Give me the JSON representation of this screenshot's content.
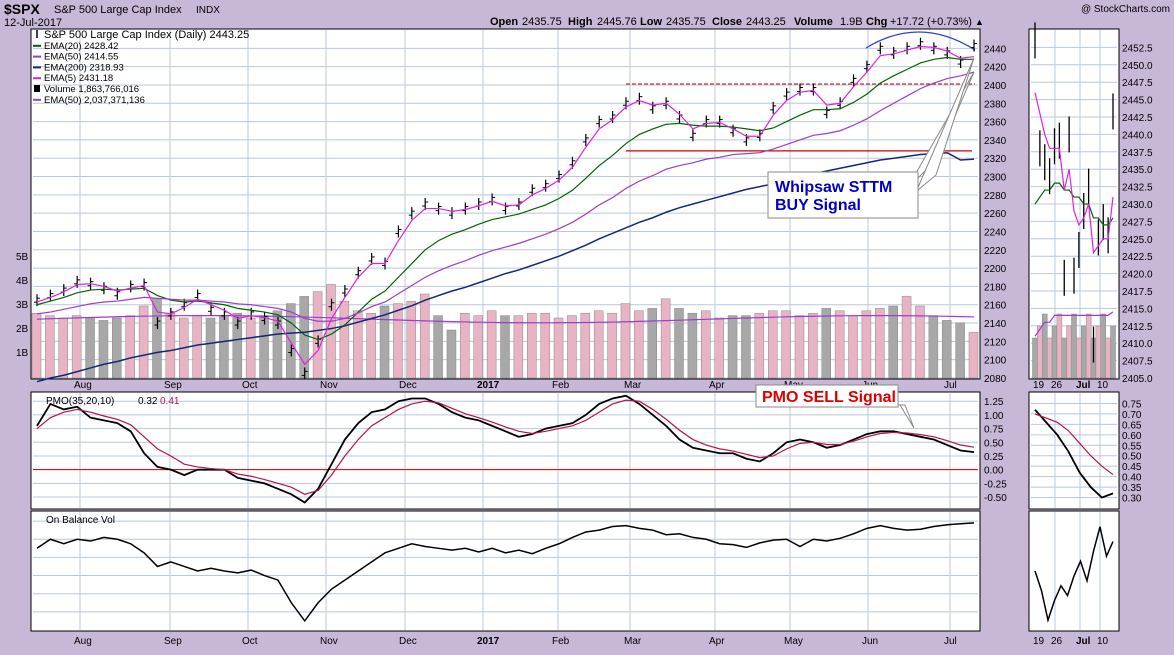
{
  "header": {
    "symbol": "$SPX",
    "name": "S&P 500 Large Cap Index",
    "exchange": "INDX",
    "date": "12-Jul-2017",
    "watermark": "@ StockCharts.com",
    "quote": {
      "open_label": "Open",
      "open": "2435.75",
      "high_label": "High",
      "high": "2445.76",
      "low_label": "Low",
      "low": "2435.75",
      "close_label": "Close",
      "close": "2443.25",
      "volume_label": "Volume",
      "volume": "1.9B",
      "chg_label": "Chg",
      "chg": "+17.72 (+0.73%)"
    }
  },
  "colors": {
    "background": "#c8b8d8",
    "plot_bg": "#ffffff",
    "grid": "#b8c8dc",
    "price": "#000000",
    "ema20": "#006400",
    "ema50": "#9c3cd0",
    "ema200": "#102a7a",
    "ema5": "#e020e0",
    "volume_up": "#e8b4c4",
    "volume_down": "#a8a8a8",
    "resistance": "#cc0000",
    "pmo": "#000000",
    "pmo_signal": "#b4144a",
    "annotation_blue": "#0000cc",
    "annotation_red": "#dd0000",
    "arc": "#3040d0"
  },
  "legend": [
    {
      "label": "S&P 500 Large Cap Index (Daily) 2443.25",
      "color": "#000000",
      "marker": "bar"
    },
    {
      "label": "EMA(20) 2428.42",
      "color": "#006400",
      "marker": "line"
    },
    {
      "label": "EMA(50) 2414.55",
      "color": "#9c3cd0",
      "marker": "line"
    },
    {
      "label": "EMA(200) 2318.93",
      "color": "#102a7a",
      "marker": "line"
    },
    {
      "label": "EMA(5) 2431.18",
      "color": "#e020e0",
      "marker": "line"
    },
    {
      "label": "Volume 1,863,766,016",
      "color": "#000000",
      "marker": "square"
    },
    {
      "label": "EMA(50) 2,037,371,136",
      "color": "#9c3cd0",
      "marker": "line"
    }
  ],
  "annotations": {
    "whipsaw_line1": "Whipsaw STTM",
    "whipsaw_line2": "BUY Signal",
    "pmo_sell": "PMO SELL Signal"
  },
  "pmo_panel": {
    "label": "PMO(35,20,10)",
    "value1": "0.32",
    "value2": "0.41"
  },
  "obv_panel": {
    "label": "On Balance Vol"
  },
  "chart_data": [
    {
      "type": "line",
      "panel": "price",
      "title": "S&P 500 Large Cap Index (Daily) 2443.25",
      "x": [
        "Jul-26",
        "Aug-01",
        "Aug-05",
        "Aug-10",
        "Aug-15",
        "Aug-20",
        "Aug-25",
        "Sep-01",
        "Sep-06",
        "Sep-09",
        "Sep-13",
        "Sep-20",
        "Sep-25",
        "Oct-01",
        "Oct-06",
        "Oct-11",
        "Oct-15",
        "Oct-20",
        "Oct-25",
        "Nov-01",
        "Nov-04",
        "Nov-08",
        "Nov-10",
        "Nov-14",
        "Nov-20",
        "Nov-25",
        "Dec-01",
        "Dec-05",
        "Dec-08",
        "Dec-13",
        "Dec-20",
        "Dec-27",
        "Jan-01",
        "Jan-05",
        "Jan-10",
        "Jan-15",
        "Jan-20",
        "Jan-25",
        "Feb-01",
        "Feb-05",
        "Feb-10",
        "Feb-15",
        "Feb-20",
        "Feb-25",
        "Mar-01",
        "Mar-05",
        "Mar-10",
        "Mar-15",
        "Mar-20",
        "Mar-25",
        "Apr-01",
        "Apr-05",
        "Apr-10",
        "Apr-15",
        "Apr-20",
        "Apr-25",
        "May-01",
        "May-05",
        "May-10",
        "May-15",
        "May-20",
        "May-25",
        "Jun-01",
        "Jun-05",
        "Jun-10",
        "Jun-15",
        "Jun-20",
        "Jun-25",
        "Jul-01",
        "Jul-05",
        "Jul-12"
      ],
      "series": [
        {
          "name": "S&P 500 Large Cap Index (Daily)",
          "values": [
            2165,
            2170,
            2176,
            2185,
            2183,
            2178,
            2172,
            2180,
            2182,
            2140,
            2150,
            2160,
            2170,
            2155,
            2150,
            2140,
            2150,
            2145,
            2140,
            2110,
            2085,
            2120,
            2160,
            2175,
            2195,
            2210,
            2205,
            2240,
            2260,
            2270,
            2265,
            2260,
            2265,
            2270,
            2275,
            2265,
            2270,
            2285,
            2290,
            2300,
            2315,
            2340,
            2360,
            2365,
            2380,
            2385,
            2375,
            2380,
            2365,
            2345,
            2360,
            2360,
            2350,
            2340,
            2345,
            2375,
            2390,
            2395,
            2395,
            2370,
            2380,
            2405,
            2420,
            2440,
            2435,
            2440,
            2445,
            2440,
            2435,
            2425,
            2443
          ]
        },
        {
          "name": "EMA(20)",
          "values": [
            2160,
            2164,
            2168,
            2173,
            2176,
            2177,
            2176,
            2177,
            2178,
            2170,
            2165,
            2163,
            2164,
            2162,
            2160,
            2156,
            2154,
            2152,
            2149,
            2140,
            2127,
            2122,
            2128,
            2138,
            2152,
            2166,
            2175,
            2190,
            2205,
            2220,
            2230,
            2237,
            2242,
            2248,
            2253,
            2256,
            2259,
            2264,
            2269,
            2276,
            2285,
            2298,
            2312,
            2323,
            2336,
            2346,
            2352,
            2357,
            2358,
            2356,
            2355,
            2355,
            2354,
            2352,
            2350,
            2353,
            2360,
            2367,
            2373,
            2373,
            2374,
            2381,
            2390,
            2402,
            2410,
            2417,
            2424,
            2428,
            2430,
            2428,
            2428
          ]
        },
        {
          "name": "EMA(50)",
          "values": [
            2150,
            2152,
            2155,
            2158,
            2161,
            2163,
            2164,
            2166,
            2168,
            2167,
            2166,
            2165,
            2165,
            2164,
            2163,
            2161,
            2160,
            2158,
            2156,
            2152,
            2145,
            2142,
            2142,
            2145,
            2151,
            2158,
            2163,
            2172,
            2181,
            2190,
            2197,
            2203,
            2208,
            2214,
            2219,
            2223,
            2227,
            2232,
            2237,
            2243,
            2250,
            2259,
            2269,
            2277,
            2287,
            2295,
            2301,
            2308,
            2312,
            2315,
            2319,
            2321,
            2324,
            2325,
            2326,
            2330,
            2335,
            2340,
            2345,
            2347,
            2350,
            2356,
            2363,
            2372,
            2380,
            2388,
            2396,
            2402,
            2407,
            2410,
            2414
          ]
        },
        {
          "name": "EMA(200)",
          "values": [
            2076,
            2080,
            2083,
            2087,
            2091,
            2095,
            2098,
            2102,
            2105,
            2108,
            2110,
            2113,
            2116,
            2118,
            2120,
            2122,
            2124,
            2126,
            2128,
            2129,
            2130,
            2132,
            2134,
            2137,
            2141,
            2145,
            2149,
            2154,
            2159,
            2165,
            2170,
            2175,
            2179,
            2184,
            2189,
            2194,
            2198,
            2203,
            2208,
            2213,
            2219,
            2225,
            2232,
            2238,
            2244,
            2250,
            2255,
            2261,
            2266,
            2270,
            2274,
            2278,
            2282,
            2286,
            2289,
            2292,
            2296,
            2300,
            2303,
            2306,
            2309,
            2312,
            2315,
            2318,
            2320,
            2322,
            2324,
            2325,
            2326,
            2318,
            2319
          ]
        },
        {
          "name": "EMA(5)",
          "values": [
            2163,
            2168,
            2174,
            2182,
            2183,
            2180,
            2175,
            2178,
            2181,
            2152,
            2150,
            2157,
            2166,
            2160,
            2154,
            2145,
            2148,
            2146,
            2142,
            2118,
            2095,
            2110,
            2145,
            2168,
            2190,
            2205,
            2205,
            2230,
            2252,
            2265,
            2265,
            2262,
            2264,
            2268,
            2273,
            2268,
            2269,
            2280,
            2287,
            2296,
            2310,
            2332,
            2352,
            2362,
            2376,
            2383,
            2378,
            2380,
            2368,
            2352,
            2358,
            2359,
            2352,
            2344,
            2344,
            2367,
            2383,
            2392,
            2394,
            2378,
            2380,
            2398,
            2414,
            2432,
            2434,
            2438,
            2442,
            2441,
            2437,
            2429,
            2431
          ]
        }
      ],
      "volume": [
        2.7,
        2.6,
        2.5,
        2.6,
        2.5,
        2.4,
        2.5,
        2.6,
        3.0,
        3.3,
        2.7,
        2.5,
        2.6,
        2.5,
        2.6,
        2.7,
        2.5,
        2.6,
        2.8,
        3.1,
        3.4,
        3.6,
        3.9,
        3.2,
        2.8,
        2.7,
        3.0,
        3.1,
        3.2,
        3.5,
        2.6,
        2.0,
        2.7,
        2.6,
        2.8,
        2.6,
        2.6,
        2.7,
        2.7,
        2.5,
        2.6,
        2.7,
        2.8,
        2.7,
        3.1,
        2.8,
        2.9,
        3.3,
        2.9,
        2.7,
        2.8,
        2.5,
        2.6,
        2.6,
        2.7,
        2.8,
        2.8,
        2.6,
        2.7,
        2.9,
        2.8,
        2.6,
        2.8,
        2.9,
        3.0,
        3.4,
        3.0,
        2.6,
        2.4,
        2.3,
        1.9
      ],
      "annotations": [
        "resistance 2401",
        "support 2328"
      ],
      "ylim": [
        2080,
        2460
      ],
      "y_ticks": [
        2080,
        2100,
        2120,
        2140,
        2160,
        2180,
        2200,
        2220,
        2240,
        2260,
        2280,
        2300,
        2320,
        2340,
        2360,
        2380,
        2400,
        2420,
        2440
      ],
      "volume_ticks": [
        "1B",
        "2B",
        "3B",
        "4B",
        "5B"
      ],
      "x_labels": [
        "Aug",
        "Sep",
        "Oct",
        "Nov",
        "Dec",
        "2017",
        "Feb",
        "Mar",
        "Apr",
        "May",
        "Jun",
        "Jul"
      ],
      "grid": true,
      "legend": "top-left"
    },
    {
      "type": "line",
      "panel": "price-zoom",
      "x": [
        "Jun-19",
        "Jun-20",
        "Jun-21",
        "Jun-22",
        "Jun-23",
        "Jun-26",
        "Jun-27",
        "Jun-28",
        "Jun-29",
        "Jun-30",
        "Jul-03",
        "Jul-05",
        "Jul-06",
        "Jul-07",
        "Jul-10",
        "Jul-11",
        "Jul-12"
      ],
      "series": [
        {
          "name": "Close",
          "values": [
            2453.5,
            2438.0,
            2436.0,
            2434.0,
            2438.3,
            2439.1,
            2419.4,
            2440.0,
            2419.7,
            2423.4,
            2429.0,
            2432.5,
            2409.8,
            2425.2,
            2427.4,
            2425.5,
            2443.3
          ]
        },
        {
          "name": "EMA(20)",
          "values": [
            2430,
            2431,
            2432,
            2432,
            2433,
            2433,
            2432,
            2432,
            2431,
            2431,
            2430,
            2430,
            2428,
            2428,
            2427,
            2427,
            2428
          ]
        },
        {
          "name": "EMA(50)",
          "values": [
            2411,
            2412,
            2413,
            2413,
            2414,
            2414,
            2414,
            2414,
            2414,
            2414,
            2414,
            2414,
            2414,
            2414,
            2414,
            2414,
            2414.5
          ]
        },
        {
          "name": "EMA(5)",
          "values": [
            2446,
            2443,
            2440,
            2438,
            2438,
            2438,
            2432,
            2435,
            2429,
            2427,
            2428,
            2430,
            2423,
            2424,
            2425,
            2425,
            2431
          ]
        }
      ],
      "ylim": [
        2405,
        2455
      ],
      "y_ticks": [
        2405,
        2407.5,
        2410,
        2412.5,
        2415,
        2417.5,
        2420,
        2422.5,
        2425,
        2427.5,
        2430,
        2432.5,
        2435,
        2437.5,
        2440,
        2442.5,
        2445,
        2447.5,
        2450,
        2452.5
      ],
      "x_labels": [
        "19",
        "26",
        "Jul",
        "10"
      ]
    },
    {
      "type": "line",
      "panel": "pmo",
      "title": "PMO(35,20,10)",
      "series": [
        {
          "name": "PMO",
          "values": [
            0.8,
            1.2,
            1.1,
            1.15,
            0.95,
            0.9,
            0.85,
            0.7,
            0.3,
            0.05,
            0.0,
            -0.1,
            0.0,
            0.0,
            0.0,
            -0.15,
            -0.2,
            -0.25,
            -0.35,
            -0.45,
            -0.6,
            -0.35,
            0.1,
            0.55,
            0.85,
            1.05,
            1.1,
            1.25,
            1.3,
            1.3,
            1.2,
            1.05,
            0.95,
            0.9,
            0.8,
            0.7,
            0.6,
            0.65,
            0.75,
            0.8,
            0.85,
            1.0,
            1.2,
            1.3,
            1.35,
            1.2,
            1.0,
            0.8,
            0.55,
            0.4,
            0.35,
            0.3,
            0.3,
            0.2,
            0.15,
            0.3,
            0.5,
            0.55,
            0.5,
            0.4,
            0.45,
            0.55,
            0.65,
            0.7,
            0.7,
            0.65,
            0.6,
            0.55,
            0.45,
            0.35,
            0.32
          ]
        },
        {
          "name": "Signal",
          "values": [
            0.75,
            0.95,
            1.05,
            1.1,
            1.05,
            0.98,
            0.92,
            0.82,
            0.6,
            0.38,
            0.25,
            0.1,
            0.05,
            0.02,
            0.0,
            -0.08,
            -0.12,
            -0.18,
            -0.25,
            -0.32,
            -0.45,
            -0.38,
            -0.1,
            0.25,
            0.55,
            0.8,
            0.95,
            1.1,
            1.2,
            1.25,
            1.22,
            1.12,
            1.02,
            0.95,
            0.87,
            0.78,
            0.7,
            0.66,
            0.7,
            0.75,
            0.8,
            0.9,
            1.05,
            1.2,
            1.27,
            1.25,
            1.1,
            0.92,
            0.72,
            0.55,
            0.45,
            0.38,
            0.34,
            0.28,
            0.22,
            0.25,
            0.38,
            0.48,
            0.5,
            0.46,
            0.46,
            0.52,
            0.6,
            0.66,
            0.68,
            0.67,
            0.64,
            0.6,
            0.53,
            0.45,
            0.41
          ]
        }
      ],
      "ylim": [
        -0.7,
        1.4
      ],
      "y_ticks": [
        "-0.50",
        "-0.25",
        "0.00",
        "0.25",
        "0.50",
        "0.75",
        "1.00",
        "1.25"
      ],
      "zoom_values": [
        0.72,
        0.66,
        0.6,
        0.52,
        0.42,
        0.35,
        0.3,
        0.32
      ],
      "zoom_signal": [
        0.7,
        0.68,
        0.66,
        0.62,
        0.56,
        0.5,
        0.45,
        0.41
      ],
      "zoom_y_ticks": [
        "0.30",
        "0.35",
        "0.40",
        "0.45",
        "0.50",
        "0.55",
        "0.60",
        "0.65",
        "0.70",
        "0.75"
      ]
    },
    {
      "type": "line",
      "panel": "obv",
      "title": "On Balance Vol",
      "series": [
        {
          "name": "OBV",
          "values": [
            5,
            6,
            5.5,
            6,
            5.8,
            6.2,
            6,
            5.5,
            4.5,
            3,
            3.5,
            3,
            2.5,
            2.8,
            2.5,
            2.3,
            2.6,
            2,
            1.5,
            -1,
            -3,
            -1,
            0.5,
            1.5,
            2.5,
            3.5,
            4.5,
            5,
            5.5,
            5.2,
            5,
            4.8,
            5,
            4.6,
            5,
            4.5,
            4.8,
            4.4,
            5,
            5.5,
            6.2,
            6.8,
            7,
            7.4,
            7.5,
            7.2,
            7,
            6.5,
            6.6,
            6.2,
            6,
            5.5,
            5.4,
            5.1,
            5.6,
            5.9,
            6,
            5.2,
            6,
            5.8,
            6.1,
            6.6,
            7.2,
            7.5,
            7.2,
            7,
            7.1,
            7.4,
            7.6,
            7.7,
            7.8
          ]
        }
      ],
      "x_labels": [
        "Aug",
        "Sep",
        "Oct",
        "Nov",
        "Dec",
        "2017",
        "Feb",
        "Mar",
        "Apr",
        "May",
        "Jun",
        "Jul"
      ],
      "zoom_x_labels": [
        "19",
        "26",
        "Jul",
        "10"
      ]
    }
  ]
}
